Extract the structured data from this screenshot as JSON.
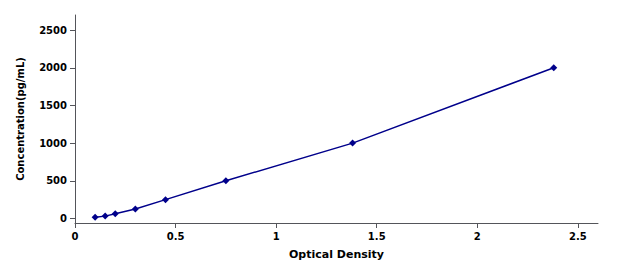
{
  "chart_data": {
    "type": "line",
    "x": [
      0.1,
      0.15,
      0.2,
      0.3,
      0.45,
      0.75,
      1.38,
      2.38
    ],
    "values": [
      15.6,
      31.25,
      62.5,
      125,
      250,
      500,
      1000,
      2000
    ],
    "color": "#00008B",
    "marker": "diamond",
    "line_style": "solid",
    "xlabel": "Optical Density",
    "ylabel": "Concentration(pg/mL)",
    "xlim": [
      0.0,
      2.6
    ],
    "ylim": [
      -60,
      2700
    ],
    "xticks": [
      0,
      0.5,
      1,
      1.5,
      2,
      2.5
    ],
    "yticks": [
      0,
      500,
      1000,
      1500,
      2000,
      2500
    ],
    "grid": false
  }
}
